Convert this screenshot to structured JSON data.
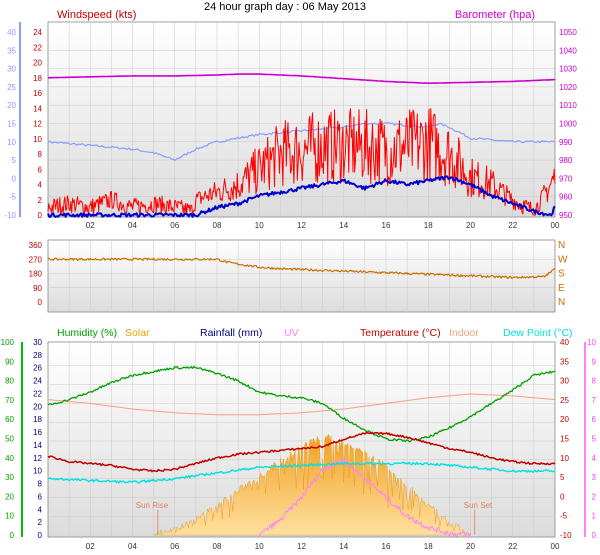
{
  "title": "24 hour graph day : 06 May 2013",
  "colors": {
    "windspeed": "#ff0000",
    "gust_avg": "#0000cc",
    "temperature_panel_wind_scale": "#8b9bff",
    "barometer": "#cc00cc",
    "direction": "#c87000",
    "humidity": "#00a000",
    "solar": "#f2a000",
    "rainfall": "#000080",
    "uv": "#ff80ff",
    "temperature": "#c00000",
    "indoor": "#f4a080",
    "dewpoint": "#00e0e0"
  },
  "hour_ticks": [
    "02",
    "04",
    "06",
    "08",
    "10",
    "12",
    "14",
    "16",
    "18",
    "20",
    "22",
    "00"
  ],
  "panels": {
    "wind": {
      "left_label": "Windspeed (kts)",
      "right_label": "Barometer (hpa)",
      "outer_left_ticks": [
        "40",
        "35",
        "30",
        "25",
        "20",
        "15",
        "10",
        "5",
        "0",
        "-5",
        "-10"
      ],
      "inner_left_ticks": [
        "24",
        "22",
        "20",
        "18",
        "16",
        "14",
        "12",
        "10",
        "8",
        "6",
        "4",
        "2",
        "0"
      ],
      "right_ticks": [
        "1050",
        "1040",
        "1030",
        "1020",
        "1010",
        "1000",
        "990",
        "980",
        "970",
        "960",
        "950"
      ]
    },
    "direction": {
      "left_ticks": [
        "360",
        "270",
        "180",
        "90",
        "0"
      ],
      "right_ticks": [
        "N",
        "W",
        "S",
        "E",
        "N"
      ]
    },
    "multi": {
      "legend": [
        {
          "key": "humidity",
          "label": "Humidity (%)"
        },
        {
          "key": "solar",
          "label": "Solar"
        },
        {
          "key": "rainfall",
          "label": "Rainfall (mm)"
        },
        {
          "key": "uv",
          "label": "UV"
        },
        {
          "key": "temperature",
          "label": "Temperature (°C)"
        },
        {
          "key": "indoor",
          "label": "Indoor"
        },
        {
          "key": "dewpoint",
          "label": "Dew Point (°C)"
        }
      ],
      "humidity_ticks": [
        "100",
        "90",
        "80",
        "70",
        "60",
        "50",
        "40",
        "30",
        "20",
        "10",
        "0"
      ],
      "rain_ticks": [
        "30",
        "28",
        "26",
        "24",
        "22",
        "20",
        "18",
        "16",
        "14",
        "12",
        "10",
        "8",
        "6",
        "4",
        "2",
        "0"
      ],
      "temp_ticks": [
        "40",
        "35",
        "30",
        "25",
        "20",
        "15",
        "10",
        "5",
        "0",
        "-5",
        "-10"
      ],
      "uv_ticks": [
        "10",
        "9",
        "8",
        "7",
        "6",
        "5",
        "4",
        "3",
        "2",
        "1",
        "0"
      ],
      "sunrise_label": "Sun Rise",
      "sunset_label": "Sun Set"
    }
  },
  "chart_data": {
    "type": "line",
    "title": "24 hour graph day : 06 May 2013",
    "x_unit": "hour",
    "xlim": [
      0,
      24
    ],
    "wind": {
      "ylim": [
        0,
        24
      ],
      "windspeed": {
        "x": [
          0,
          1,
          2,
          3,
          4,
          5,
          6,
          6.8,
          7,
          8,
          9,
          10,
          11,
          12,
          13,
          14,
          15,
          16,
          17,
          18,
          19,
          20,
          21,
          22,
          23,
          23.8,
          24
        ],
        "values": [
          1,
          1.5,
          1,
          2,
          1,
          1.5,
          1,
          0.5,
          2,
          3,
          4,
          6,
          8,
          8.5,
          9,
          9,
          9,
          8.5,
          9,
          9.5,
          8,
          5,
          4,
          2,
          0.5,
          4,
          5
        ]
      },
      "average": {
        "x": [
          0,
          1,
          2,
          3,
          4,
          5,
          6,
          7,
          8,
          9,
          10,
          11,
          12,
          13,
          14,
          15,
          16,
          17,
          18,
          19,
          20,
          21,
          22,
          23,
          23.8,
          24
        ],
        "values": [
          0,
          0,
          0,
          0,
          0,
          0,
          0,
          0,
          1,
          1.5,
          2.5,
          3,
          3.5,
          4,
          4.5,
          3.5,
          4.5,
          4,
          4.5,
          5,
          4,
          2.5,
          1.5,
          0.5,
          0,
          1
        ]
      },
      "barometer": {
        "x": [
          0,
          2,
          4,
          6,
          8,
          9,
          10,
          12,
          14,
          16,
          18,
          20,
          22,
          24
        ],
        "values": [
          1025,
          1025.5,
          1026,
          1026,
          1026.5,
          1027,
          1027,
          1026,
          1024.5,
          1023,
          1022,
          1022.5,
          1023,
          1024
        ]
      },
      "light_line": {
        "x": [
          0,
          2,
          4,
          5,
          6,
          7,
          8,
          10,
          12,
          14,
          15,
          16,
          17,
          18,
          18.5,
          19,
          20,
          22,
          24
        ],
        "values": [
          10,
          9,
          8,
          7,
          5,
          8,
          10,
          12,
          13,
          14,
          15,
          15,
          14.5,
          14,
          15,
          14,
          11,
          10,
          10
        ]
      }
    },
    "direction": {
      "ylim": [
        0,
        360
      ],
      "values_deg": {
        "x": [
          0,
          2,
          4,
          6,
          8,
          8.5,
          9,
          10,
          11,
          12,
          13,
          14,
          15,
          16,
          17,
          18,
          19,
          20,
          22,
          23.5,
          24
        ],
        "values": [
          270,
          270,
          270,
          270,
          270,
          250,
          240,
          220,
          210,
          205,
          200,
          195,
          190,
          185,
          180,
          175,
          170,
          165,
          155,
          160,
          210
        ]
      }
    },
    "multi": {
      "humidity": {
        "ylim": [
          0,
          100
        ],
        "x": [
          0,
          1,
          2,
          3,
          4,
          5,
          6,
          7,
          8,
          9,
          10,
          11,
          12,
          13,
          14,
          15,
          16,
          17,
          18,
          19,
          20,
          21,
          22,
          23,
          24
        ],
        "values": [
          69,
          72,
          76,
          81,
          85,
          87,
          89,
          89,
          86,
          82,
          76,
          74,
          73,
          70,
          62,
          56,
          51,
          50,
          52,
          57,
          63,
          70,
          77,
          85,
          87
        ]
      },
      "solar_rel": {
        "x": [
          5,
          6,
          7,
          8,
          9,
          10,
          11,
          12,
          13,
          14,
          15,
          16,
          17,
          18,
          19,
          20
        ],
        "values": [
          0,
          0.05,
          0.15,
          0.3,
          0.45,
          0.6,
          0.75,
          0.9,
          1.0,
          0.95,
          0.85,
          0.7,
          0.5,
          0.3,
          0.12,
          0
        ]
      },
      "temperature": {
        "ylim": [
          -10,
          40
        ],
        "x": [
          0,
          1,
          2,
          3,
          4,
          5,
          6,
          7,
          8,
          9,
          10,
          11,
          12,
          13,
          14,
          15,
          16,
          17,
          18,
          19,
          20,
          21,
          22,
          23,
          24
        ],
        "values": [
          11,
          9.5,
          9,
          8.5,
          7.5,
          7,
          7.5,
          9,
          10.5,
          11.5,
          12,
          12.5,
          13,
          13.5,
          15.5,
          17,
          17,
          16,
          14.5,
          13,
          12,
          10.5,
          9.5,
          9,
          9
        ]
      },
      "dewpoint": {
        "ylim": [
          -10,
          40
        ],
        "x": [
          0,
          2,
          4,
          6,
          8,
          10,
          12,
          14,
          16,
          18,
          20,
          22,
          24
        ],
        "values": [
          5,
          4.5,
          4,
          5,
          6.5,
          8,
          8.5,
          9,
          9,
          9,
          8,
          7,
          7
        ]
      },
      "indoor": {
        "ylim": [
          -10,
          40
        ],
        "x": [
          0,
          2,
          4,
          6,
          8,
          10,
          12,
          14,
          16,
          18,
          20,
          22,
          24
        ],
        "values": [
          26,
          25,
          23.5,
          22.5,
          22,
          22,
          22.5,
          23.5,
          25,
          26.5,
          27.5,
          27,
          26
        ]
      },
      "uv": {
        "ylim": [
          0,
          10
        ],
        "x": [
          10,
          11,
          12,
          13,
          14,
          15,
          16,
          17,
          18,
          19,
          20
        ],
        "values": [
          0,
          0.8,
          2,
          3.5,
          4,
          3,
          2,
          1,
          0.4,
          0.1,
          0
        ]
      }
    }
  }
}
